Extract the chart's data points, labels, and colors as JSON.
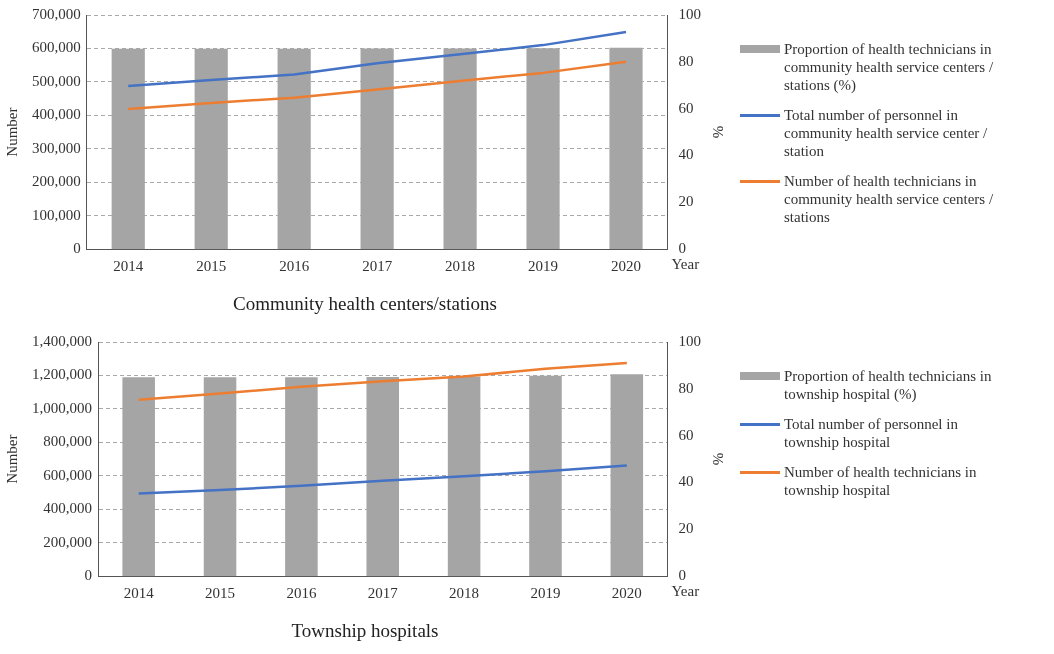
{
  "chart_data": [
    {
      "type": "bar",
      "title": "Community health centers/stations",
      "xlabel": "Year",
      "ylabel": "Number",
      "y2label": "%",
      "categories": [
        "2014",
        "2015",
        "2016",
        "2017",
        "2018",
        "2019",
        "2020"
      ],
      "series": [
        {
          "name": "Proportion of health technicians in community health service centers / stations (%)",
          "axis": "y2",
          "color": "#a5a5a5",
          "values": [
            85.6,
            85.6,
            85.6,
            85.7,
            85.7,
            85.8,
            86.0
          ]
        },
        {
          "name": "Total number of personnel in community health service center / station",
          "type": "line",
          "color": "#4472c4",
          "values": [
            488000,
            506000,
            522000,
            556000,
            583000,
            610000,
            649000
          ]
        },
        {
          "name": "Number of health technicians in community health service centers / stations",
          "type": "line",
          "color": "#ed7d31",
          "values": [
            419000,
            437000,
            453000,
            477000,
            503000,
            527000,
            560000
          ]
        }
      ],
      "ylim": [
        0,
        700000
      ],
      "yticks": [
        0,
        {
          "value": 100000,
          "label": "100,000"
        },
        {
          "value": 200000,
          "label": "200,000"
        },
        {
          "value": 300000,
          "label": "300,000"
        },
        {
          "value": 400000,
          "label": "400,000"
        },
        {
          "value": 500000,
          "label": "500,000"
        },
        {
          "value": 600000,
          "label": "600,000"
        },
        {
          "value": 700000,
          "label": "700,000"
        }
      ],
      "y2lim": [
        0,
        100
      ],
      "y2ticks": [
        0,
        20,
        40,
        60,
        80,
        100
      ],
      "grid": "y",
      "legend": "right",
      "marker": "none",
      "line_style": "solid"
    },
    {
      "type": "bar",
      "title": "Township hospitals",
      "xlabel": "Year",
      "ylabel": "Number",
      "y2label": "%",
      "categories": [
        "2014",
        "2015",
        "2016",
        "2017",
        "2018",
        "2019",
        "2020"
      ],
      "series": [
        {
          "name": "Proportion of health technicians in township hospital (%)",
          "axis": "y2",
          "color": "#a5a5a5",
          "values": [
            84.9,
            84.9,
            85.0,
            85.1,
            85.3,
            85.6,
            86.2
          ]
        },
        {
          "name": "Total number of personnel in township hospital",
          "type": "line",
          "color": "#4472c4",
          "values": [
            495000,
            515000,
            540000,
            570000,
            598000,
            627000,
            662000
          ]
        },
        {
          "name": "Number of health technicians in township hospital",
          "type": "line",
          "color": "#ed7d31",
          "values": [
            1055000,
            1092000,
            1133000,
            1165000,
            1194000,
            1240000,
            1274000
          ]
        }
      ],
      "ylim": [
        0,
        1400000
      ],
      "yticks": [
        0,
        {
          "value": 200000,
          "label": "200,000"
        },
        {
          "value": 400000,
          "label": "400,000"
        },
        {
          "value": 600000,
          "label": "600,000"
        },
        {
          "value": 800000,
          "label": "800,000"
        },
        {
          "value": 1000000,
          "label": "1,000,000"
        },
        {
          "value": 1200000,
          "label": "1,200,000"
        },
        {
          "value": 1400000,
          "label": "1,400,000"
        }
      ],
      "y2lim": [
        0,
        100
      ],
      "y2ticks": [
        0,
        20,
        40,
        60,
        80,
        100
      ],
      "grid": "y",
      "legend": "right",
      "marker": "none",
      "line_style": "solid"
    }
  ]
}
